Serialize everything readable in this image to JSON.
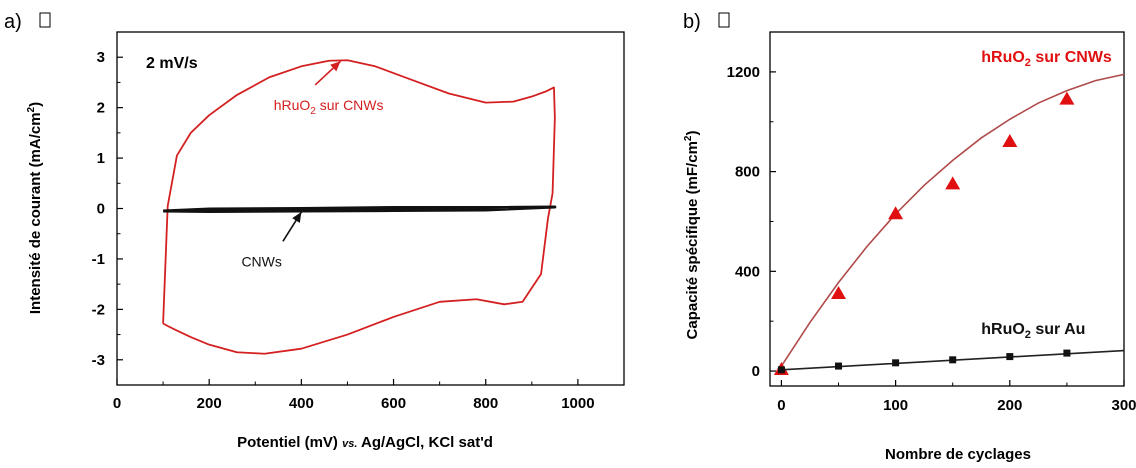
{
  "chart_data": [
    {
      "type": "line",
      "panel_label": "a)",
      "title": "",
      "xlabel": "Potentiel (mV)",
      "xlabel_vs": "vs.",
      "xlabel_tail": "Ag/AgCl, KCl sat'd",
      "ylabel": "Intensité de courant (mA/cm",
      "ylabel_sup": "2",
      "ylabel_tail": ")",
      "xlim": [
        0,
        1100
      ],
      "ylim": [
        -3.5,
        3.5
      ],
      "xticks": [
        0,
        200,
        400,
        600,
        800,
        1000
      ],
      "yticks": [
        -3,
        -2,
        -1,
        0,
        1,
        2,
        3
      ],
      "scan_rate": "2 mV/s",
      "series": [
        {
          "name": "hRuO2 sur CNWs",
          "label_main": "hRuO",
          "label_sub": "2",
          "label_tail": " sur CNWs",
          "color": "#d42020",
          "label_anchor": [
            340,
            1.95
          ],
          "label_arrow_from": [
            430,
            2.45
          ],
          "label_arrow_to": [
            485,
            2.92
          ],
          "x": [
            100,
            110,
            130,
            160,
            200,
            260,
            330,
            400,
            460,
            500,
            560,
            640,
            720,
            800,
            860,
            900,
            930,
            948,
            950,
            945,
            935,
            920,
            880,
            840,
            780,
            700,
            600,
            500,
            400,
            320,
            260,
            200,
            160,
            130,
            110,
            100
          ],
          "y": [
            -2.28,
            0.05,
            1.05,
            1.5,
            1.85,
            2.25,
            2.6,
            2.82,
            2.93,
            2.94,
            2.82,
            2.55,
            2.28,
            2.1,
            2.12,
            2.22,
            2.32,
            2.4,
            1.8,
            0.3,
            -0.2,
            -1.3,
            -1.85,
            -1.9,
            -1.8,
            -1.85,
            -2.15,
            -2.5,
            -2.78,
            -2.88,
            -2.85,
            -2.7,
            -2.55,
            -2.42,
            -2.33,
            -2.28
          ]
        },
        {
          "name": "CNWs",
          "label_main": "CNWs",
          "color": "#111111",
          "label_anchor": [
            270,
            -1.15
          ],
          "label_arrow_from": [
            360,
            -0.65
          ],
          "label_arrow_to": [
            400,
            -0.07
          ],
          "x": [
            100,
            200,
            400,
            600,
            800,
            950,
            800,
            600,
            400,
            200,
            100
          ],
          "y": [
            -0.05,
            -0.01,
            0.0,
            0.02,
            0.02,
            0.03,
            -0.03,
            -0.04,
            -0.05,
            -0.06,
            -0.05
          ]
        }
      ]
    },
    {
      "type": "scatter",
      "panel_label": "b)",
      "title": "",
      "xlabel": "Nombre de cyclages",
      "ylabel": "Capacité spécifique (mF/cm",
      "ylabel_sup": "2",
      "ylabel_tail": ")",
      "xlim": [
        -10,
        300
      ],
      "ylim": [
        -60,
        1360
      ],
      "xticks": [
        0,
        100,
        200,
        300
      ],
      "yticks": [
        0,
        400,
        800,
        1200
      ],
      "series": [
        {
          "name": "hRuO2 sur CNWs",
          "label_main": "hRuO",
          "label_sub": "2",
          "label_tail": " sur CNWs",
          "color": "#e01010",
          "line_color": "#b04a4a",
          "marker": "triangle",
          "label_anchor": [
            175,
            1240
          ],
          "x": [
            0,
            50,
            100,
            150,
            200,
            250
          ],
          "y": [
            10,
            315,
            635,
            755,
            925,
            1095
          ],
          "fit_x": [
            0,
            25,
            50,
            75,
            100,
            125,
            150,
            175,
            200,
            225,
            250,
            275,
            300
          ],
          "fit_y": [
            20,
            195,
            355,
            500,
            630,
            745,
            845,
            935,
            1010,
            1075,
            1125,
            1165,
            1190
          ]
        },
        {
          "name": "hRuO2 sur Au",
          "label_main": "hRuO",
          "label_sub": "2",
          "label_tail": " sur Au",
          "color": "#111111",
          "line_color": "#222222",
          "marker": "square",
          "label_anchor": [
            175,
            148
          ],
          "x": [
            0,
            50,
            100,
            150,
            200,
            250
          ],
          "y": [
            5,
            20,
            33,
            45,
            58,
            72
          ],
          "fit_x": [
            0,
            300
          ],
          "fit_y": [
            5,
            82
          ]
        }
      ]
    }
  ]
}
